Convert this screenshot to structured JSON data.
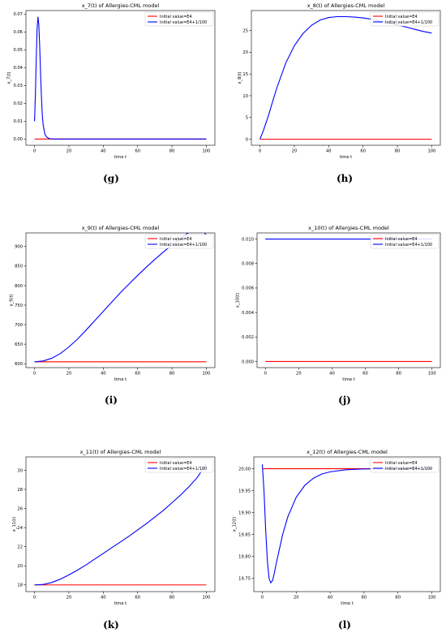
{
  "chart_data": [
    {
      "type": "line",
      "title": "x_7(t) of Allergies-CML model",
      "xlabel": "time t",
      "ylabel": "x_7(t)",
      "caption": "(g)",
      "xlim": [
        -5,
        105
      ],
      "ylim": [
        -0.0035,
        0.072
      ],
      "xticks": [
        0,
        20,
        40,
        60,
        80,
        100
      ],
      "yticks": [
        0,
        0.01,
        0.02,
        0.03,
        0.04,
        0.05,
        0.06,
        0.07
      ],
      "ytick_labels": [
        "0.00",
        "0.01",
        "0.02",
        "0.03",
        "0.04",
        "0.05",
        "0.06",
        "0.07"
      ],
      "legend": "top-right",
      "series": [
        {
          "name": "Initial value=E4",
          "color": "#ff0000",
          "x": [
            0,
            100
          ],
          "y": [
            0,
            0
          ]
        },
        {
          "name": "Initial value=E4+1/100",
          "color": "#0000ff",
          "x": [
            0,
            0.5,
            1,
            1.5,
            2,
            2.5,
            3,
            3.5,
            4,
            4.5,
            5,
            6,
            7,
            8,
            9,
            10,
            12,
            15,
            20,
            100
          ],
          "y": [
            0.01,
            0.025,
            0.045,
            0.062,
            0.0685,
            0.064,
            0.052,
            0.037,
            0.024,
            0.014,
            0.008,
            0.0028,
            0.0012,
            0.0005,
            0.0002,
            0.0001,
            0,
            0,
            0,
            0
          ]
        }
      ]
    },
    {
      "type": "line",
      "title": "x_8(t) of Allergies-CML model",
      "xlabel": "time t",
      "ylabel": "x_8(t)",
      "caption": "(h)",
      "xlim": [
        -5,
        105
      ],
      "ylim": [
        -1.4,
        29.6
      ],
      "xticks": [
        0,
        20,
        40,
        60,
        80,
        100
      ],
      "yticks": [
        0,
        5,
        10,
        15,
        20,
        25
      ],
      "ytick_labels": [
        "0",
        "5",
        "10",
        "15",
        "20",
        "25"
      ],
      "legend": "top-right",
      "series": [
        {
          "name": "Initial value=E4",
          "color": "#ff0000",
          "x": [
            0,
            100
          ],
          "y": [
            0,
            0
          ]
        },
        {
          "name": "Initial value=E4+1/100",
          "color": "#0000ff",
          "x": [
            0,
            2,
            5,
            8,
            10,
            15,
            20,
            25,
            30,
            35,
            40,
            45,
            50,
            55,
            60,
            65,
            70,
            75,
            80,
            85,
            90,
            95,
            100
          ],
          "y": [
            0.01,
            2.0,
            5.5,
            9.5,
            12.0,
            17.5,
            21.5,
            24.3,
            26.2,
            27.4,
            28.0,
            28.2,
            28.2,
            28.1,
            27.9,
            27.6,
            27.2,
            26.7,
            26.3,
            25.8,
            25.3,
            24.8,
            24.4
          ]
        }
      ]
    },
    {
      "type": "line",
      "title": "x_9(t) of Allergies-CML model",
      "xlabel": "time t",
      "ylabel": "x_9(t)",
      "caption": "(i)",
      "xlim": [
        -5,
        105
      ],
      "ylim": [
        590,
        935
      ],
      "xticks": [
        0,
        20,
        40,
        60,
        80,
        100
      ],
      "yticks": [
        600,
        650,
        700,
        750,
        800,
        850,
        900
      ],
      "ytick_labels": [
        "600",
        "650",
        "700",
        "750",
        "800",
        "850",
        "900"
      ],
      "legend": "top-right",
      "series": [
        {
          "name": "Initial value=E4",
          "color": "#ff0000",
          "x": [
            0,
            100
          ],
          "y": [
            605,
            605
          ]
        },
        {
          "name": "Initial value=E4+1/100",
          "color": "#0000ff",
          "x": [
            0,
            5,
            10,
            15,
            20,
            25,
            30,
            35,
            40,
            45,
            50,
            55,
            60,
            65,
            70,
            75,
            80,
            85,
            90,
            95,
            100
          ],
          "y": [
            605,
            607,
            614,
            626,
            643,
            663,
            686,
            710,
            734,
            758,
            782,
            804,
            826,
            847,
            867,
            886,
            904,
            921,
            937,
            953,
            930
          ]
        }
      ]
    },
    {
      "type": "line",
      "title": "x_10(t) of Allergies-CML model",
      "xlabel": "time t",
      "ylabel": "x_10(t)",
      "caption": "(j)",
      "xlim": [
        -5,
        105
      ],
      "ylim": [
        -0.0005,
        0.0105
      ],
      "xticks": [
        0,
        20,
        40,
        60,
        80,
        100
      ],
      "yticks": [
        0,
        0.002,
        0.004,
        0.006,
        0.008,
        0.01
      ],
      "ytick_labels": [
        "0.000",
        "0.002",
        "0.004",
        "0.006",
        "0.008",
        "0.010"
      ],
      "legend": "top-right",
      "series": [
        {
          "name": "Initial value=E4",
          "color": "#ff0000",
          "x": [
            0,
            100
          ],
          "y": [
            0,
            0
          ]
        },
        {
          "name": "Initial value=E4+1/100",
          "color": "#0000ff",
          "x": [
            0,
            100
          ],
          "y": [
            0.01,
            0.01
          ]
        }
      ]
    },
    {
      "type": "line",
      "title": "x_11(t) of Allergies-CML model",
      "xlabel": "time t",
      "ylabel": "x_11(t)",
      "caption": "(k)",
      "xlim": [
        -5,
        105
      ],
      "ylim": [
        17.3,
        31.4
      ],
      "xticks": [
        0,
        20,
        40,
        60,
        80,
        100
      ],
      "yticks": [
        18,
        20,
        22,
        24,
        26,
        28,
        30
      ],
      "ytick_labels": [
        "18",
        "20",
        "22",
        "24",
        "26",
        "28",
        "30"
      ],
      "legend": "top-right",
      "series": [
        {
          "name": "Initial value=E4",
          "color": "#ff0000",
          "x": [
            0,
            100
          ],
          "y": [
            18,
            18
          ]
        },
        {
          "name": "Initial value=E4+1/100",
          "color": "#0000ff",
          "x": [
            0,
            5,
            10,
            15,
            20,
            25,
            30,
            35,
            40,
            45,
            50,
            55,
            60,
            65,
            70,
            75,
            80,
            85,
            90,
            95,
            100
          ],
          "y": [
            18.0,
            18.05,
            18.25,
            18.6,
            19.05,
            19.55,
            20.1,
            20.7,
            21.3,
            21.9,
            22.5,
            23.1,
            23.75,
            24.4,
            25.1,
            25.8,
            26.6,
            27.4,
            28.3,
            29.3,
            30.7
          ]
        }
      ]
    },
    {
      "type": "line",
      "title": "x_12(t) of Allergies-CML model",
      "xlabel": "time t",
      "ylabel": "x_12(t)",
      "caption": "(l)",
      "xlim": [
        -5,
        105
      ],
      "ylim": [
        19.72,
        20.027
      ],
      "xticks": [
        0,
        20,
        40,
        60,
        80,
        100
      ],
      "yticks": [
        19.75,
        19.8,
        19.85,
        19.9,
        19.95,
        20.0
      ],
      "ytick_labels": [
        "19.75",
        "19.80",
        "19.85",
        "19.90",
        "19.95",
        "20.00"
      ],
      "legend": "top-right",
      "series": [
        {
          "name": "Initial value=E4",
          "color": "#ff0000",
          "x": [
            0,
            100
          ],
          "y": [
            20.0,
            20.0
          ]
        },
        {
          "name": "Initial value=E4+1/100",
          "color": "#0000ff",
          "x": [
            0,
            1,
            2,
            3,
            4,
            5,
            6,
            7,
            8,
            10,
            12,
            15,
            20,
            25,
            30,
            35,
            40,
            50,
            60,
            70,
            100
          ],
          "y": [
            20.01,
            19.95,
            19.86,
            19.79,
            19.75,
            19.74,
            19.745,
            19.76,
            19.78,
            19.815,
            19.85,
            19.89,
            19.935,
            19.962,
            19.978,
            19.988,
            19.993,
            19.998,
            19.9995,
            20.0,
            20.0
          ]
        }
      ]
    }
  ]
}
